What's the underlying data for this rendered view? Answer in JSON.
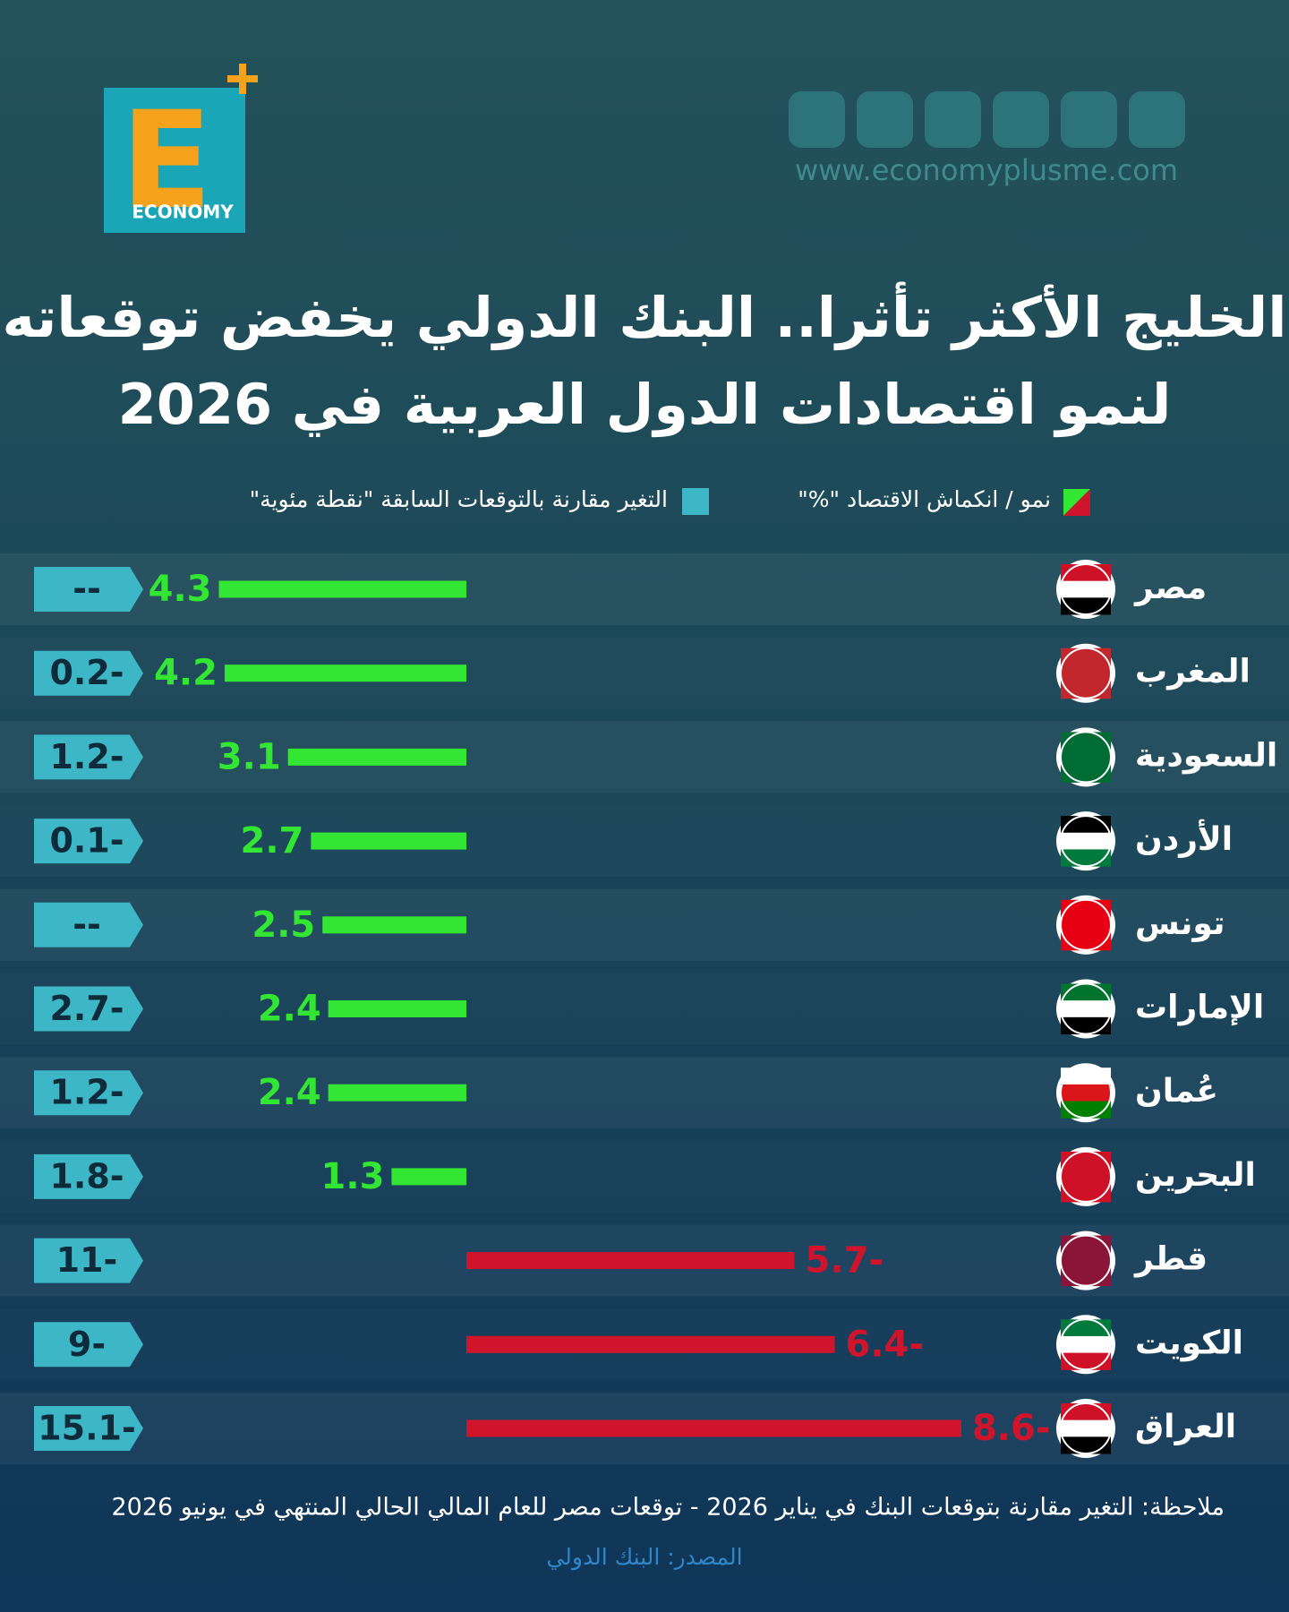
{
  "header": {
    "logo_letter": "E",
    "logo_word": "ECONOMY",
    "website": "www.economyplusme.com"
  },
  "chart_data": {
    "type": "bar",
    "orientation": "horizontal",
    "title_lines": [
      "الخليج الأكثر تأثرا.. البنك الدولي يخفض توقعاته",
      "لنمو اقتصادات الدول العربية في 2026"
    ],
    "categories": [
      "مصر",
      "المغرب",
      "السعودية",
      "الأردن",
      "تونس",
      "الإمارات",
      "عُمان",
      "البحرين",
      "قطر",
      "الكويت",
      "العراق"
    ],
    "series": [
      {
        "name": "نمو / انكماش الاقتصاد \"%\"",
        "color": "#33e633",
        "negative_color": "#d0142c",
        "values": [
          4.3,
          4.2,
          3.1,
          2.7,
          2.5,
          2.4,
          2.4,
          1.3,
          -5.7,
          -6.4,
          -8.6
        ],
        "value_labels": [
          "4.3",
          "4.2",
          "3.1",
          "2.7",
          "2.5",
          "2.4",
          "2.4",
          "1.3",
          "5.7-",
          "6.4-",
          "8.6-"
        ]
      },
      {
        "name": "التغير مقارنة بالتوقعات السابقة \"نقطة مئوية\"",
        "color": "#3db6c6",
        "values": [
          null,
          -0.2,
          -1.2,
          -0.1,
          null,
          -2.7,
          -1.2,
          -1.8,
          -11,
          -9,
          -15.1
        ],
        "value_labels": [
          "--",
          "0.2-",
          "1.2-",
          "0.1-",
          "--",
          "2.7-",
          "1.2-",
          "1.8-",
          "11-",
          "9-",
          "15.1-"
        ]
      }
    ],
    "note": "ملاحظة: التغير مقارنة بتوقعات البنك في يناير 2026 - توقعات مصر للعام المالي الحالي المنتهي في يونيو 2026",
    "source": "المصدر: البنك الدولي"
  }
}
